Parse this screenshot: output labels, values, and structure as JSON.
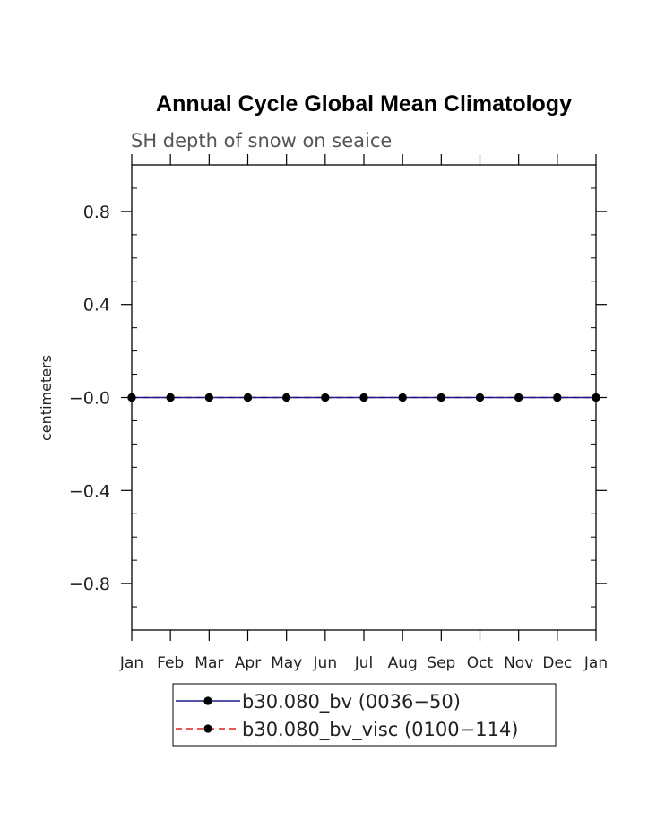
{
  "chart_data": {
    "type": "line",
    "title": "Annual Cycle Global Mean Climatology",
    "subtitle": "SH depth of snow on seaice",
    "ylabel": "centimeters",
    "xlabel": "",
    "categories": [
      "Jan",
      "Feb",
      "Mar",
      "Apr",
      "May",
      "Jun",
      "Jul",
      "Aug",
      "Sep",
      "Oct",
      "Nov",
      "Dec",
      "Jan"
    ],
    "ylim": [
      -1.0,
      1.0
    ],
    "yticks": [
      0.8,
      0.4,
      0.0,
      -0.4,
      -0.8
    ],
    "ytick_labels": [
      "0.8",
      "0.4",
      "−0.0",
      "−0.4",
      "−0.8"
    ],
    "grid": false,
    "legend_position": "bottom",
    "series": [
      {
        "name": "b30.080_bv (0036−50)",
        "values": [
          0,
          0,
          0,
          0,
          0,
          0,
          0,
          0,
          0,
          0,
          0,
          0,
          0
        ],
        "color": "#1a1a8c",
        "dash": "solid",
        "marker": "filled-circle"
      },
      {
        "name": "b30.080_bv_visc (0100−114)",
        "values": [
          0,
          0,
          0,
          0,
          0,
          0,
          0,
          0,
          0,
          0,
          0,
          0,
          0
        ],
        "color": "#e0201c",
        "dash": "dashed",
        "marker": "filled-circle"
      }
    ]
  }
}
